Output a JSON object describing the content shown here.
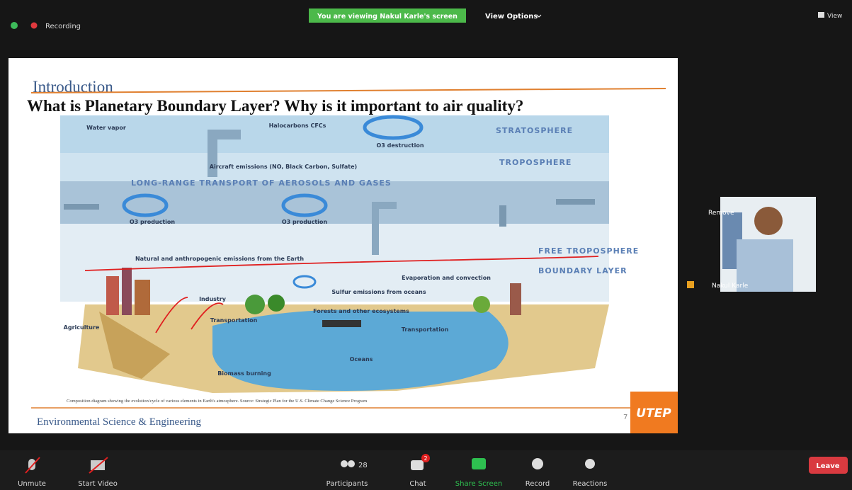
{
  "top_bar": {
    "recording": "Recording",
    "viewing_banner": "You are viewing Nakul Karle's screen",
    "view_options": "View Options",
    "view": "View"
  },
  "slide": {
    "section": "Introduction",
    "title": "What is Planetary Boundary Layer? Why is it important to air quality?",
    "diagram_labels": [
      "Water vapor",
      "Halocarbons CFCs",
      "O3 destruction",
      "STRATOSPHERE",
      "Aircraft emissions (NO, Black Carbon, Sulfate)",
      "TROPOSPHERE",
      "LONG-RANGE TRANSPORT OF AEROSOLS AND GASES",
      "O3 production",
      "O3 production",
      "Natural and anthropogenic emissions from the Earth",
      "Sulfur emissions from oceans",
      "Evaporation and convection",
      "FREE TROPOSPHERE",
      "BOUNDARY LAYER",
      "Forests and other ecosystems",
      "Transportation",
      "Transportation",
      "Industry",
      "Agriculture",
      "Oceans",
      "Biomass burning"
    ],
    "caption": "Composition diagram showing the evolution/cycle of various elements in Earth's atmosphere. Source: Strategic Plan for the U.S. Climate Change Science Program",
    "footer": "Environmental Science & Engineering",
    "page_number": 7,
    "logo": "UTEP"
  },
  "participant_tile": {
    "action": "Remove",
    "name": "Nakul Karle"
  },
  "toolbar": {
    "unmute": "Unmute",
    "start_video": "Start Video",
    "participants": "Participants",
    "participants_count": 28,
    "chat": "Chat",
    "chat_badge": 2,
    "share_screen": "Share Screen",
    "record": "Record",
    "reactions": "Reactions",
    "leave": "Leave"
  }
}
